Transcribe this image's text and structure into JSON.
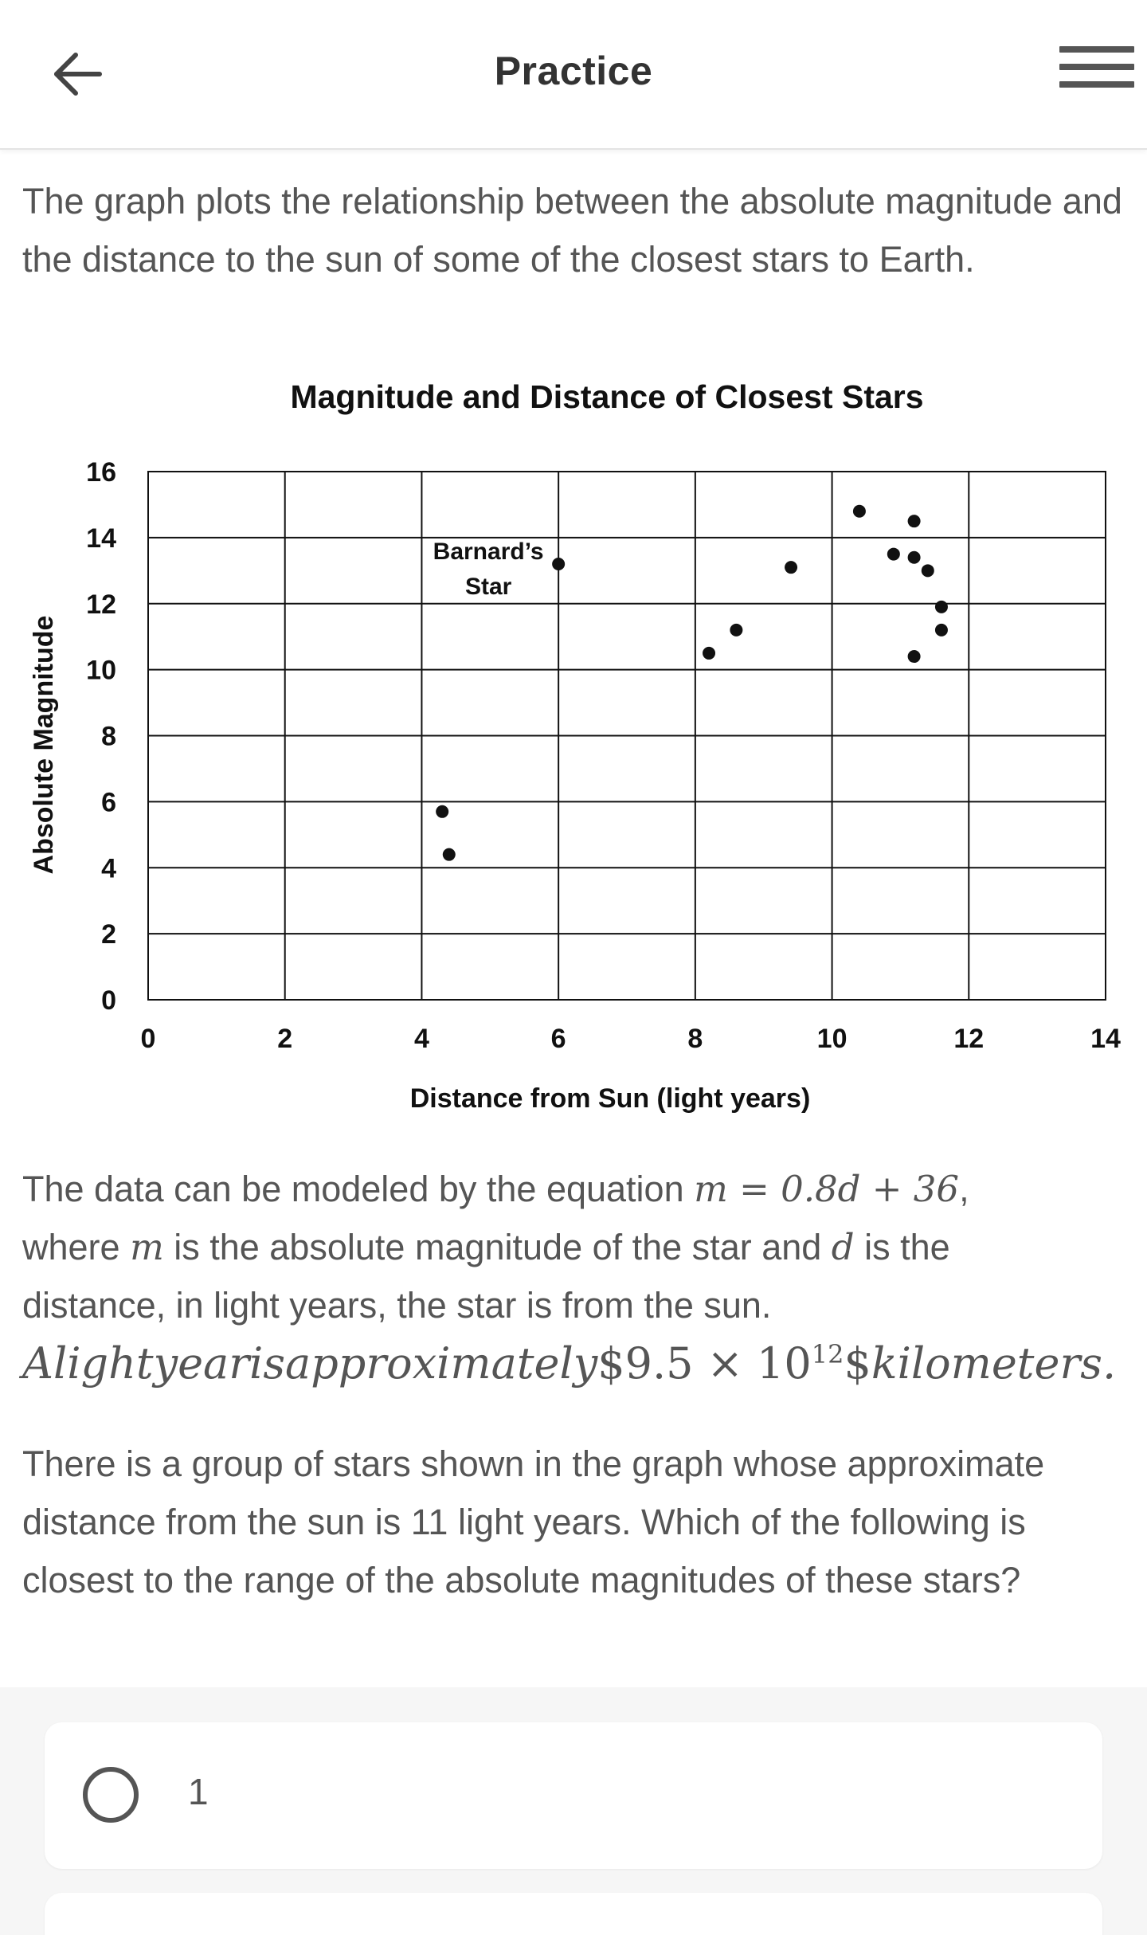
{
  "header": {
    "title": "Practice",
    "back_icon": "arrow-left-icon",
    "menu_icon": "hamburger-menu-icon"
  },
  "question": {
    "intro": "The graph plots the relationship between the absolute magnitude and the distance to the sun of some of the closest stars to Earth.",
    "model_text_1": "The data can be modeled by the equation ",
    "model_equation": "m = 0.8d + 36",
    "model_text_2": ",",
    "model_text_3": "where ",
    "var_m": "m",
    "model_text_4": " is the absolute magnitude of the star and ",
    "var_d": "d",
    "model_text_5": " is the",
    "model_text_6": "distance, in light years, the star is from the sun.",
    "sci_text_1": "Alightyearisapproximately",
    "sci_text_2": "$9.5 × 10",
    "sci_exponent": "12",
    "sci_text_3": "$",
    "sci_text_4": "kilometers.",
    "prompt": "There is a group of stars shown in the graph whose approximate distance from the sun is 11 light years. Which of the following is closest to the range of the absolute magnitudes of these stars?"
  },
  "chart_data": {
    "type": "scatter",
    "title": "Magnitude and Distance of Closest Stars",
    "xlabel": "Distance from Sun (light years)",
    "ylabel": "Absolute Magnitude",
    "xlim": [
      0,
      14
    ],
    "ylim": [
      0,
      16
    ],
    "xticks": [
      0,
      2,
      4,
      6,
      8,
      10,
      12,
      14
    ],
    "yticks": [
      0,
      2,
      4,
      6,
      8,
      10,
      12,
      14,
      16
    ],
    "grid": true,
    "annotation": {
      "text_line1": "Barnard’s",
      "text_line2": "Star",
      "x": 6.0,
      "y": 13.2
    },
    "points": [
      {
        "x": 4.3,
        "y": 5.7
      },
      {
        "x": 4.4,
        "y": 4.4
      },
      {
        "x": 6.0,
        "y": 13.2
      },
      {
        "x": 8.2,
        "y": 10.5
      },
      {
        "x": 8.6,
        "y": 11.2
      },
      {
        "x": 9.4,
        "y": 13.1
      },
      {
        "x": 10.4,
        "y": 14.8
      },
      {
        "x": 10.9,
        "y": 13.5
      },
      {
        "x": 11.2,
        "y": 14.5
      },
      {
        "x": 11.2,
        "y": 13.4
      },
      {
        "x": 11.4,
        "y": 13.0
      },
      {
        "x": 11.6,
        "y": 11.9
      },
      {
        "x": 11.6,
        "y": 11.2
      },
      {
        "x": 11.2,
        "y": 10.4
      }
    ]
  },
  "answers": [
    {
      "label": "1"
    },
    {
      "label": ""
    }
  ],
  "colors": {
    "text": "#555555",
    "title": "#333333",
    "answer_bg": "#f6f6f6"
  }
}
